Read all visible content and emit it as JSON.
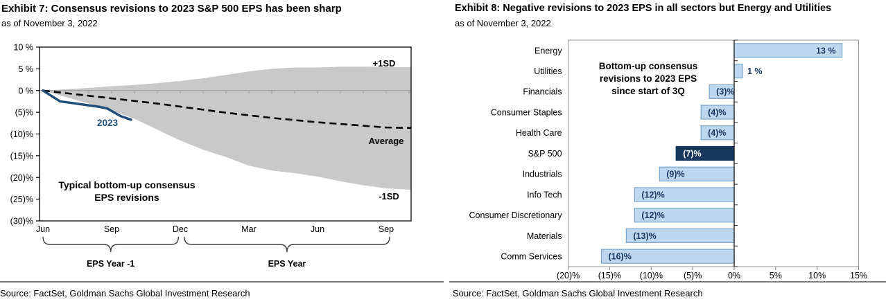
{
  "left_panel": {
    "title": "Exhibit 7: Consensus revisions to 2023 S&P 500 EPS has been sharp",
    "subtitle": "as of November 3, 2022",
    "source": "Source: FactSet, Goldman Sachs Global Investment Research",
    "chart_data": {
      "type": "area",
      "annotation_lines": [
        "Typical bottom-up consensus",
        "EPS revisions"
      ],
      "band_label_top": "+1SD",
      "band_label_bottom": "-1SD",
      "avg_label": "Average",
      "line_label": "2023",
      "ylim": [
        -30,
        10
      ],
      "y_ticks": [
        {
          "v": 10,
          "label": "10 %"
        },
        {
          "v": 5,
          "label": "5 %"
        },
        {
          "v": 0,
          "label": "0 %"
        },
        {
          "v": -5,
          "label": "(5)%"
        },
        {
          "v": -10,
          "label": "(10)%"
        },
        {
          "v": -15,
          "label": "(15)%"
        },
        {
          "v": -20,
          "label": "(20)%"
        },
        {
          "v": -25,
          "label": "(25)%"
        },
        {
          "v": -30,
          "label": "(30)%"
        }
      ],
      "x_ticks": [
        {
          "m": 0,
          "label": "Jun"
        },
        {
          "m": 3,
          "label": "Sep"
        },
        {
          "m": 6,
          "label": "Dec"
        },
        {
          "m": 9,
          "label": "Mar"
        },
        {
          "m": 12,
          "label": "Jun"
        },
        {
          "m": 15,
          "label": "Sep"
        }
      ],
      "band_top": [
        0,
        0.3,
        0.6,
        1.0,
        1.3,
        1.7,
        2.2,
        2.8,
        3.6,
        4.4,
        5.0,
        5.3,
        5.3,
        5.5,
        5.5,
        5.4,
        5.4
      ],
      "band_bottom": [
        0,
        -1.5,
        -3.0,
        -4.6,
        -6.5,
        -9.0,
        -11.5,
        -13.6,
        -15.3,
        -17.3,
        -18.4,
        -19.0,
        -19.8,
        -20.9,
        -21.8,
        -22.5,
        -22.8
      ],
      "average": [
        0,
        -0.6,
        -1.2,
        -1.8,
        -2.4,
        -3.0,
        -3.7,
        -4.4,
        -5.1,
        -5.7,
        -6.3,
        -6.8,
        -7.3,
        -7.7,
        -8.1,
        -8.5,
        -8.6
      ],
      "line_2023": {
        "x": [
          0,
          0.75,
          1.45,
          2.4,
          2.8,
          3.4,
          3.85
        ],
        "y": [
          0,
          -2.5,
          -3.0,
          -3.7,
          -4.1,
          -5.9,
          -6.7
        ]
      },
      "braces": [
        {
          "from_m": 0,
          "to_m": 5.92,
          "label": "EPS Year -1"
        },
        {
          "from_m": 6.18,
          "to_m": 15.15,
          "label": "EPS Year"
        }
      ],
      "colors": {
        "band": "#C9C9C9",
        "zero_line": "#A6A6A6",
        "line": "#1F4E79",
        "average": "#000000"
      }
    }
  },
  "right_panel": {
    "title": "Exhibit 8: Negative revisions to 2023 EPS in all sectors but Energy and Utilities",
    "subtitle": "as of November 3, 2022",
    "source": "Source: FactSet, Goldman Sachs Global Investment Research",
    "chart_data": {
      "type": "bar",
      "orientation": "horizontal",
      "annotation_lines": [
        "Bottom-up consensus",
        "revisions to 2023 EPS",
        "since start of 3Q"
      ],
      "xlim": [
        -20,
        15
      ],
      "x_ticks": [
        {
          "v": -20,
          "label": "(20)%"
        },
        {
          "v": -15,
          "label": "(15)%"
        },
        {
          "v": -10,
          "label": "(10)%"
        },
        {
          "v": -5,
          "label": "(5)%"
        },
        {
          "v": 0,
          "label": "0%"
        },
        {
          "v": 5,
          "label": "5%"
        },
        {
          "v": 10,
          "label": "10%"
        },
        {
          "v": 15,
          "label": "15%"
        }
      ],
      "categories": [
        "Energy",
        "Utilities",
        "Financials",
        "Consumer Staples",
        "Health Care",
        "S&P 500",
        "Industrials",
        "Info Tech",
        "Consumer Discretionary",
        "Materials",
        "Comm Services"
      ],
      "values": [
        13,
        1,
        -3,
        -4,
        -4,
        -7,
        -9,
        -12,
        -12,
        -13,
        -16
      ],
      "value_labels": [
        "13 %",
        "1 %",
        "(3)%",
        "(4)%",
        "(4)%",
        "(7)%",
        "(9)%",
        "(12)%",
        "(12)%",
        "(13)%",
        "(16)%"
      ],
      "highlight_index": 5,
      "colors": {
        "bar": "#BDD7EE",
        "bar_border": "#7CA6C8",
        "highlight": "#17375E",
        "highlight_border": "#17375E",
        "label": "#17375E",
        "label_on_highlight": "#FFFFFF",
        "frame": "#909090",
        "zero_line": "#262626"
      }
    }
  }
}
